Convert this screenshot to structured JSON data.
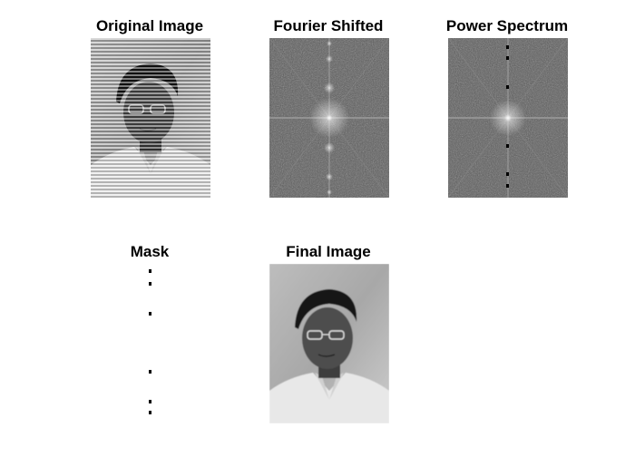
{
  "panels": [
    {
      "id": "original",
      "title": "Original Image"
    },
    {
      "id": "fourier",
      "title": "Fourier Shifted"
    },
    {
      "id": "power",
      "title": "Power Spectrum"
    },
    {
      "id": "mask",
      "title": "Mask"
    },
    {
      "id": "final",
      "title": "Final Image"
    }
  ],
  "colors": {
    "background": "#ffffff",
    "title": "#000000",
    "spectrum_base": "#5a5a5a",
    "mask_marker": "#000000"
  },
  "icons": {
    "photo": "portrait-photo-icon",
    "spectrum": "fft-spectrum-icon",
    "mask_marker": "square-marker-icon"
  }
}
